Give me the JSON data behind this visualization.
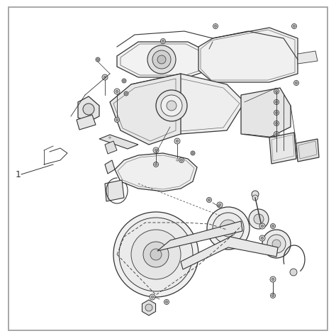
{
  "background_color": "#ffffff",
  "border_color": "#999999",
  "border_linewidth": 1.2,
  "lc": "#333333",
  "lw": 0.9,
  "tlw": 0.6,
  "fig_width": 4.74,
  "fig_height": 4.74,
  "dpi": 100,
  "label_1": "1"
}
